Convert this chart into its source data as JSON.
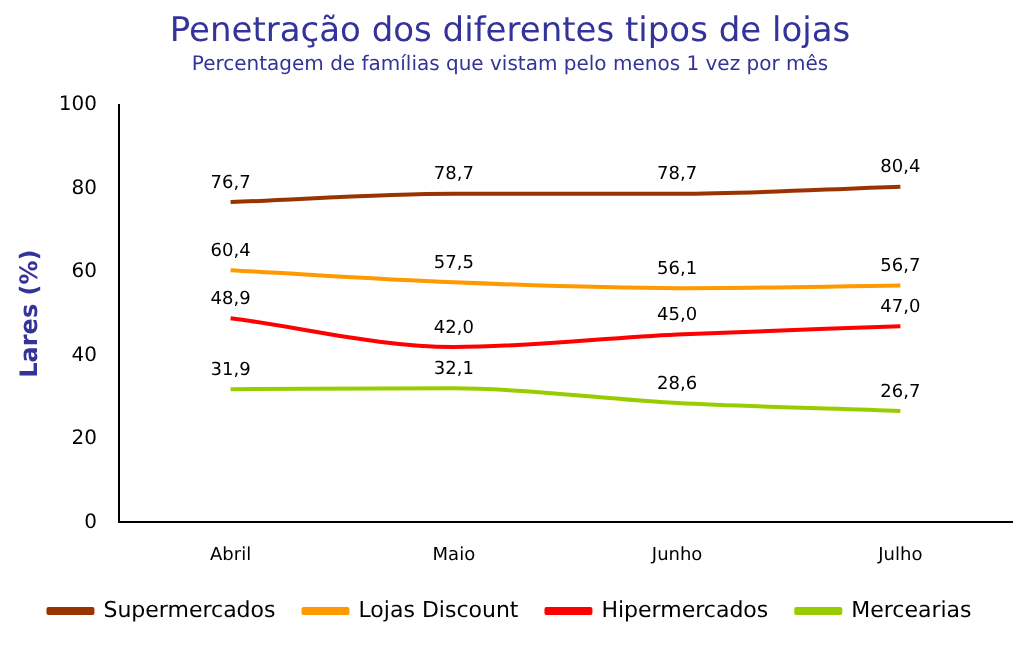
{
  "chart_data": {
    "type": "line",
    "title": "Penetração dos diferentes tipos de lojas",
    "subtitle": "Percentagem de famílias que vistam pelo menos 1 vez por mês",
    "ylabel": "Lares (%)",
    "categories": [
      "Abril",
      "Maio",
      "Junho",
      "Julho"
    ],
    "series": [
      {
        "name": "Supermercados",
        "color": "#993300",
        "values": [
          76.7,
          78.7,
          78.7,
          80.4
        ],
        "value_labels": [
          "76,7",
          "78,7",
          "78,7",
          "80,4"
        ]
      },
      {
        "name": "Lojas Discount",
        "color": "#ff9900",
        "values": [
          60.4,
          57.5,
          56.1,
          56.7
        ],
        "value_labels": [
          "60,4",
          "57,5",
          "56,1",
          "56,7"
        ]
      },
      {
        "name": "Hipermercados",
        "color": "#ff0000",
        "values": [
          48.9,
          42.0,
          45.0,
          47.0
        ],
        "value_labels": [
          "48,9",
          "42,0",
          "45,0",
          "47,0"
        ]
      },
      {
        "name": "Mercearias",
        "color": "#99cc00",
        "values": [
          31.9,
          32.1,
          28.6,
          26.7
        ],
        "value_labels": [
          "31,9",
          "32,1",
          "28,6",
          "26,7"
        ]
      }
    ],
    "ylim": [
      0,
      100
    ],
    "yticks": [
      0,
      20,
      40,
      60,
      80,
      100
    ],
    "grid": false,
    "legend": "bottom",
    "marker": "none",
    "line_style": "solid"
  }
}
